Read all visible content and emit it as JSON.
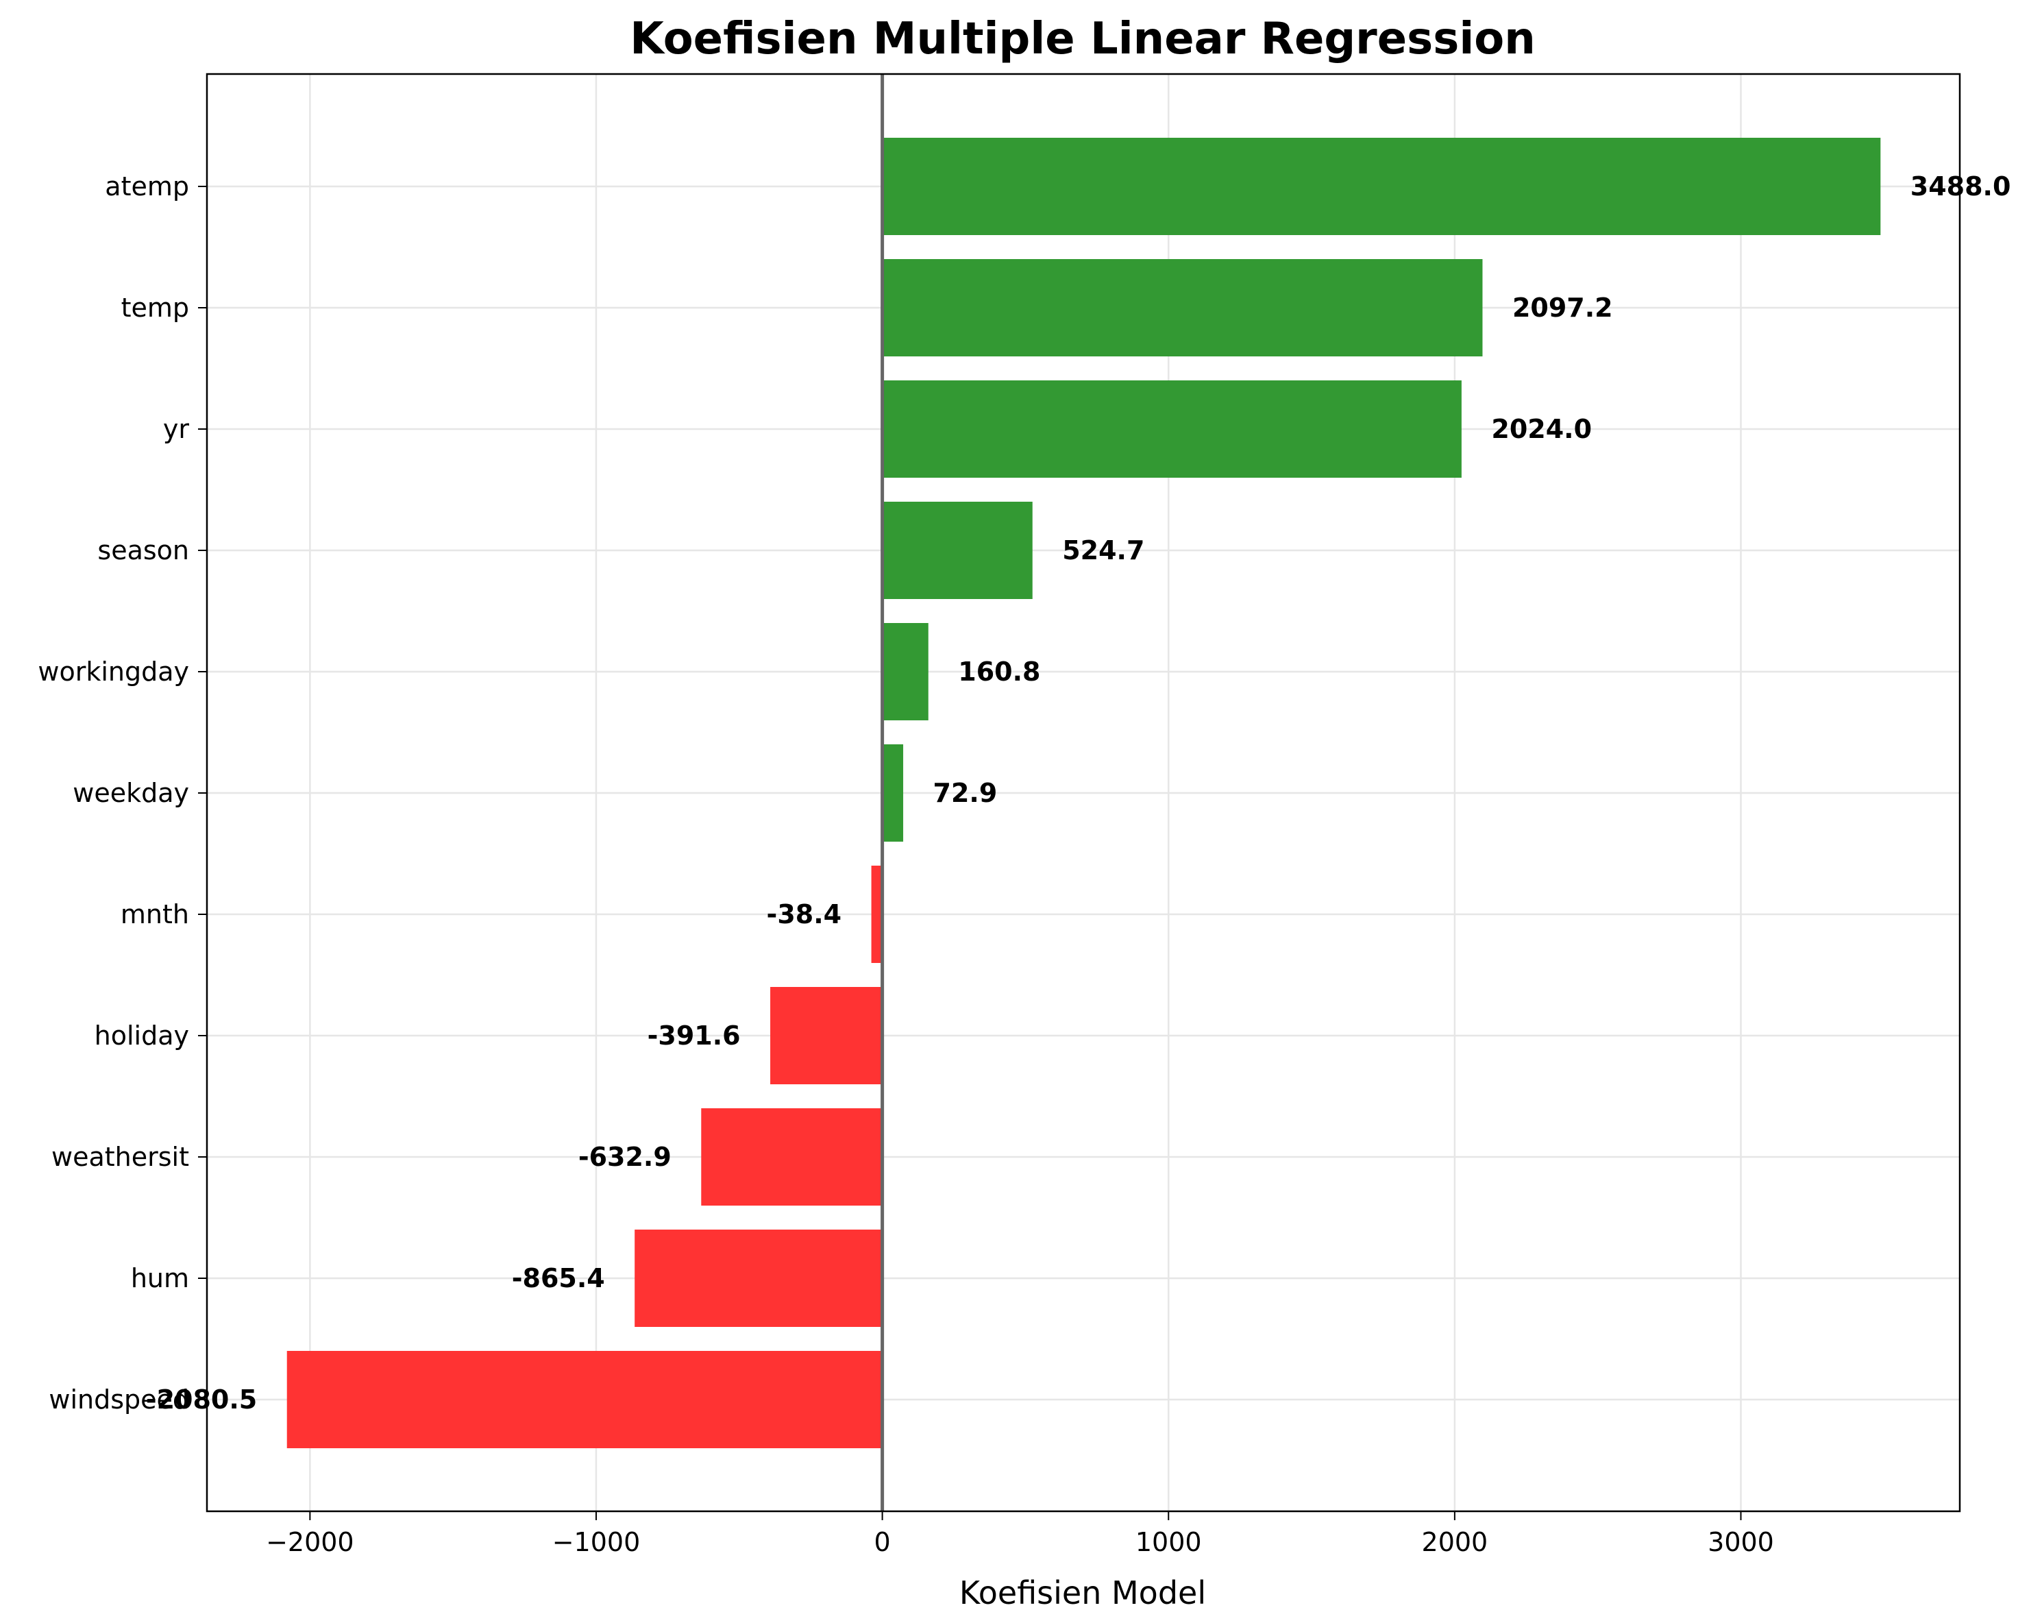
{
  "chart_data": {
    "type": "bar",
    "orientation": "horizontal",
    "title": "Koefisien Multiple Linear Regression",
    "xlabel": "Koefisien Model",
    "ylabel": "",
    "categories": [
      "atemp",
      "temp",
      "yr",
      "season",
      "workingday",
      "weekday",
      "mnth",
      "holiday",
      "weathersit",
      "hum",
      "windspeed"
    ],
    "values": [
      3488.0,
      2097.2,
      2024.0,
      524.7,
      160.8,
      72.9,
      -38.4,
      -391.6,
      -632.9,
      -865.4,
      -2080.5
    ],
    "value_labels": [
      "3488.0",
      "2097.2",
      "2024.0",
      "524.7",
      "160.8",
      "72.9",
      "-38.4",
      "-391.6",
      "-632.9",
      "-865.4",
      "-2080.5"
    ],
    "xlim": [
      -2360,
      3765
    ],
    "xticks": [
      -2000,
      -1000,
      0,
      1000,
      2000,
      3000
    ],
    "xtick_labels": [
      "−2000",
      "−1000",
      "0",
      "1000",
      "2000",
      "3000"
    ],
    "grid": true,
    "zero_line": true,
    "colors": {
      "positive": "#339933",
      "negative": "#ff3333",
      "zero_line": "#666666",
      "grid": "#e6e6e6"
    }
  }
}
